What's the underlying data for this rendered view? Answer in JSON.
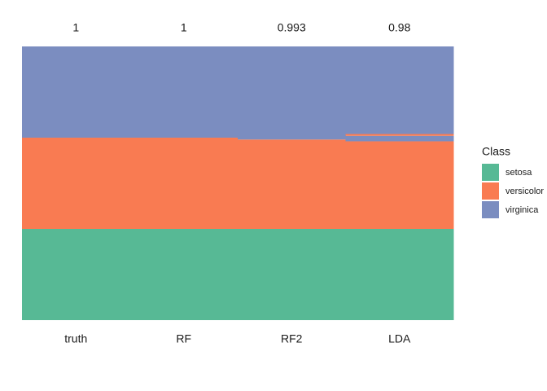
{
  "chart_data": {
    "type": "stacked-tiles",
    "categories": [
      "truth",
      "RF",
      "RF2",
      "LDA"
    ],
    "values": [
      1,
      1,
      0.993,
      0.98
    ],
    "ylim": [
      0,
      150
    ],
    "legend": {
      "title": "Class",
      "position": "right"
    },
    "series": [
      {
        "name": "setosa",
        "color": "#57b995"
      },
      {
        "name": "versicolor",
        "color": "#f97b52"
      },
      {
        "name": "virginica",
        "color": "#7b8dc0"
      }
    ],
    "segments": [
      [
        {
          "class": "setosa",
          "count": 50
        },
        {
          "class": "versicolor",
          "count": 50
        },
        {
          "class": "virginica",
          "count": 50
        }
      ],
      [
        {
          "class": "setosa",
          "count": 50
        },
        {
          "class": "versicolor",
          "count": 50
        },
        {
          "class": "virginica",
          "count": 50
        }
      ],
      [
        {
          "class": "setosa",
          "count": 50
        },
        {
          "class": "versicolor",
          "count": 49
        },
        {
          "class": "virginica",
          "count": 51
        }
      ],
      [
        {
          "class": "setosa",
          "count": 50
        },
        {
          "class": "versicolor",
          "count": 48
        },
        {
          "class": "virginica",
          "count": 3
        },
        {
          "class": "versicolor",
          "count": 1
        },
        {
          "class": "virginica",
          "count": 48
        }
      ]
    ]
  }
}
